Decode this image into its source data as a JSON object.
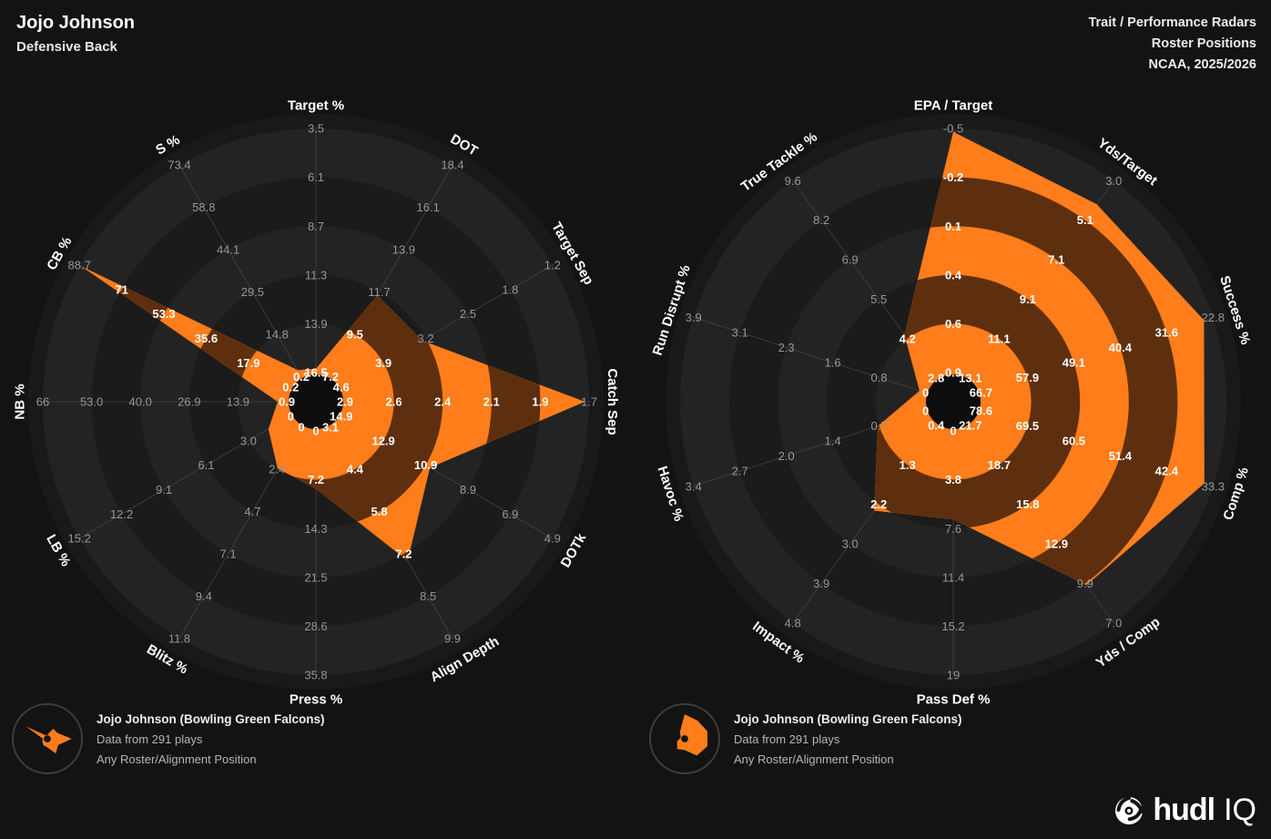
{
  "header": {
    "player_name": "Jojo Johnson",
    "player_position": "Defensive Back",
    "report_title": "Trait / Performance Radars",
    "report_subtitle": "Roster Positions",
    "season": "NCAA, 2025/2026"
  },
  "legend": {
    "player": "Jojo Johnson (Bowling Green Falcons)",
    "sample": "Data from 291 plays",
    "filter": "Any Roster/Alignment Position"
  },
  "logo": {
    "brand": "hudl",
    "product": "IQ"
  },
  "colors": {
    "accent": "#ff7d1a",
    "accent_dark": "#5e2f0e",
    "band_light": "#232323",
    "band_dark": "#1b1b1b",
    "rim": "#191919",
    "hole": "#0d0d0d",
    "axis_line": "#424242",
    "tick": "#969696",
    "tick_covered": "#ffffff",
    "axis_label": "#ffffff",
    "background": "#131313"
  },
  "chart_data": [
    {
      "type": "radar",
      "name": "trait-radar",
      "rings": 6,
      "note": "ticks listed outer ring to inner ring; value = player vertex in axis units",
      "axes": [
        {
          "label": "Target %",
          "ticks": [
            "3.5",
            "6.1",
            "8.7",
            "11.3",
            "13.9",
            "16.5"
          ],
          "value": 16.3
        },
        {
          "label": "DOT",
          "ticks": [
            "18.4",
            "16.1",
            "13.9",
            "11.7",
            "9.5",
            "7.2"
          ],
          "value": 11.5
        },
        {
          "label": "Target Sep",
          "ticks": [
            "1.2",
            "1.8",
            "2.5",
            "3.2",
            "3.9",
            "4.6"
          ],
          "value": 3.3
        },
        {
          "label": "Catch Sep",
          "ticks": [
            "1.7",
            "1.9",
            "2.1",
            "2.4",
            "2.6",
            "2.9"
          ],
          "value": 1.72
        },
        {
          "label": "DOTk",
          "ticks": [
            "4.9",
            "6.9",
            "8.9",
            "10.9",
            "12.9",
            "14.9"
          ],
          "value": 10.7
        },
        {
          "label": "Align Depth",
          "ticks": [
            "9.9",
            "8.5",
            "7.2",
            "5.8",
            "4.4",
            "3.1"
          ],
          "value": 7.4
        },
        {
          "label": "Press %",
          "ticks": [
            "35.8",
            "28.6",
            "21.5",
            "14.3",
            "7.2",
            "0"
          ],
          "value": 8.5
        },
        {
          "label": "Blitz %",
          "ticks": [
            "11.8",
            "9.4",
            "7.1",
            "4.7",
            "2.4",
            "0"
          ],
          "value": 2.3
        },
        {
          "label": "LB %",
          "ticks": [
            "15.2",
            "12.2",
            "9.1",
            "6.1",
            "3.0",
            "0"
          ],
          "value": 1.6
        },
        {
          "label": "NB %",
          "ticks": [
            "66",
            "53.0",
            "40.0",
            "26.9",
            "13.9",
            "0.9"
          ],
          "value": 3.3
        },
        {
          "label": "CB %",
          "ticks": [
            "88.7",
            "71",
            "53.3",
            "35.6",
            "17.9",
            "0.2"
          ],
          "value": 88.0
        },
        {
          "label": "S %",
          "ticks": [
            "73.4",
            "58.8",
            "44.1",
            "29.5",
            "14.8",
            "0.2"
          ],
          "value": 2.4
        }
      ]
    },
    {
      "type": "radar",
      "name": "performance-radar",
      "rings": 6,
      "note": "ticks listed outer ring to inner ring; value = player vertex in axis units",
      "axes": [
        {
          "label": "EPA / Target",
          "ticks": [
            "-0.5",
            "-0.2",
            "0.1",
            "0.4",
            "0.6",
            "0.9"
          ],
          "value": -0.48
        },
        {
          "label": "Yds/Target",
          "ticks": [
            "3.0",
            "5.1",
            "7.1",
            "9.1",
            "11.1",
            "13.1"
          ],
          "value": 4.2
        },
        {
          "label": "Success %",
          "ticks": [
            "22.8",
            "31.6",
            "40.4",
            "49.1",
            "57.9",
            "66.7"
          ],
          "value": 24.5
        },
        {
          "label": "Comp %",
          "ticks": [
            "33.3",
            "42.4",
            "51.4",
            "60.5",
            "69.5",
            "78.6"
          ],
          "value": 35.0
        },
        {
          "label": "Yds / Comp",
          "ticks": [
            "7.0",
            "9.9",
            "12.9",
            "15.8",
            "18.7",
            "21.7"
          ],
          "value": 9.8
        },
        {
          "label": "Pass Def %",
          "ticks": [
            "19",
            "15.2",
            "11.4",
            "7.6",
            "3.8",
            "0"
          ],
          "value": 6.9
        },
        {
          "label": "Impact %",
          "ticks": [
            "4.8",
            "3.9",
            "3.0",
            "2.2",
            "1.3",
            "0.4"
          ],
          "value": 2.3
        },
        {
          "label": "Havoc %",
          "ticks": [
            "3.4",
            "2.7",
            "2.0",
            "1.4",
            "0.7",
            "0"
          ],
          "value": 0.7
        },
        {
          "label": "Run Disrupt %",
          "ticks": [
            "3.9",
            "3.1",
            "2.3",
            "1.6",
            "0.8",
            "0"
          ],
          "value": 0.1
        },
        {
          "label": "True Tackle %",
          "ticks": [
            "9.6",
            "8.2",
            "6.9",
            "5.5",
            "4.2",
            "2.8"
          ],
          "value": 4.3
        }
      ]
    }
  ]
}
